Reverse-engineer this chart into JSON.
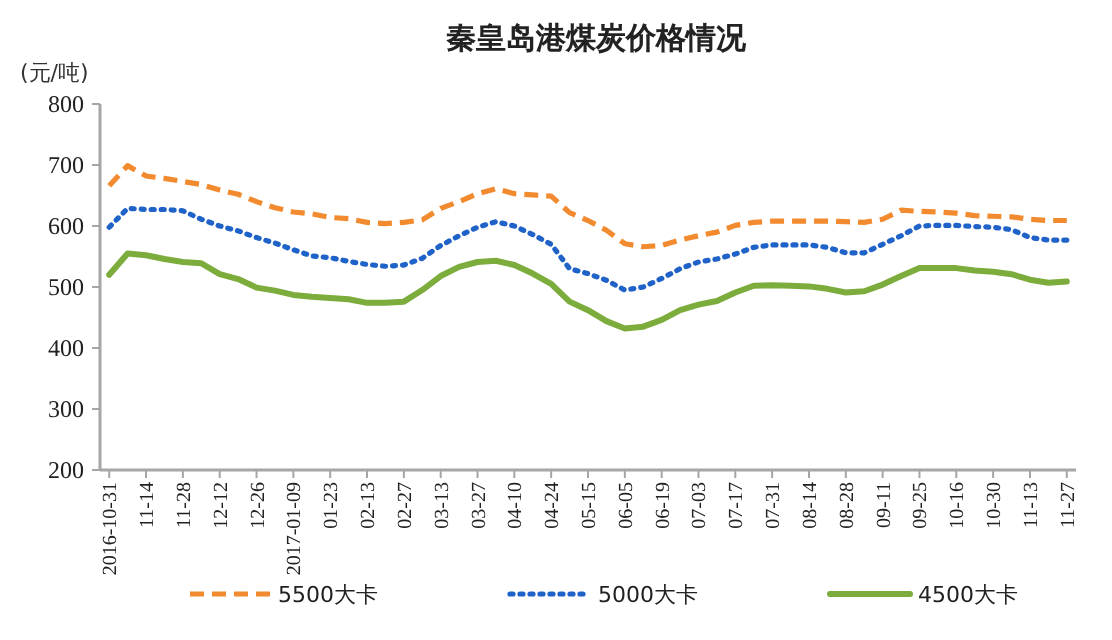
{
  "chart_data": {
    "type": "line",
    "title": "秦皇岛港煤炭价格情况",
    "ylabel": "(元/吨)",
    "categories": [
      "2016-10-31",
      null,
      "11-14",
      null,
      "11-28",
      null,
      "12-12",
      null,
      "12-26",
      null,
      "2017-01-09",
      null,
      "01-23",
      null,
      "02-13",
      null,
      "02-27",
      null,
      "03-13",
      null,
      "03-27",
      null,
      "04-10",
      null,
      "04-24",
      null,
      "05-15",
      null,
      "06-05",
      null,
      "06-19",
      null,
      "07-03",
      null,
      "07-17",
      null,
      "07-31",
      null,
      "08-14",
      null,
      "08-28",
      null,
      "09-11",
      null,
      "09-25",
      null,
      "10-16",
      null,
      "10-30",
      null,
      "11-13",
      null,
      "11-27"
    ],
    "series": [
      {
        "name": "5500大卡",
        "color": "#f28b30",
        "line_style": "dashed",
        "values": [
          666,
          699,
          682,
          678,
          673,
          668,
          659,
          652,
          640,
          630,
          623,
          620,
          614,
          612,
          606,
          604,
          606,
          610,
          629,
          640,
          653,
          661,
          653,
          651,
          649,
          622,
          609,
          593,
          571,
          566,
          568,
          577,
          584,
          590,
          601,
          606,
          608,
          608,
          608,
          608,
          607,
          606,
          611,
          626,
          624,
          623,
          621,
          617,
          616,
          615,
          611,
          609,
          609
        ]
      },
      {
        "name": "5000大卡",
        "color": "#1f62c8",
        "line_style": "dotted",
        "values": [
          598,
          629,
          627,
          627,
          625,
          611,
          600,
          592,
          581,
          572,
          561,
          551,
          548,
          542,
          537,
          534,
          536,
          547,
          568,
          584,
          598,
          607,
          600,
          586,
          570,
          530,
          522,
          511,
          495,
          500,
          514,
          530,
          541,
          546,
          554,
          565,
          569,
          569,
          569,
          565,
          556,
          556,
          570,
          584,
          600,
          601,
          601,
          599,
          598,
          594,
          581,
          577,
          577
        ]
      },
      {
        "name": "4500大卡",
        "color": "#7cac3c",
        "line_style": "solid",
        "values": [
          520,
          555,
          552,
          546,
          541,
          539,
          521,
          513,
          499,
          494,
          487,
          484,
          482,
          480,
          474,
          474,
          476,
          495,
          518,
          533,
          541,
          543,
          536,
          522,
          505,
          476,
          462,
          444,
          432,
          435,
          446,
          462,
          471,
          477,
          491,
          502,
          503,
          502,
          501,
          497,
          491,
          493,
          504,
          518,
          531,
          531,
          531,
          527,
          525,
          521,
          512,
          507,
          509
        ]
      }
    ],
    "ylim": [
      200,
      800
    ],
    "yticks": [
      200,
      300,
      400,
      500,
      600,
      700,
      800
    ],
    "legend": "bottom"
  }
}
